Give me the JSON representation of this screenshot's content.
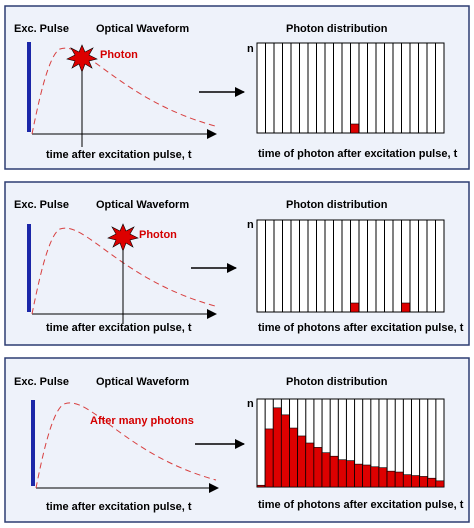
{
  "colors": {
    "panel_bg": "#eef2fa",
    "panel_border": "#2d3d72",
    "pulse": "#1b27a8",
    "waveform": "#d84040",
    "photon": "#dd0000",
    "bin_fill": "#dd0000"
  },
  "icons": {
    "photon_marker": "red-star-burst-icon",
    "arrow": "right-arrow-icon"
  },
  "panels": [
    {
      "exc_pulse": "Exc. Pulse",
      "optical_waveform": "Optical Waveform",
      "photon_label": "Photon",
      "waveform_xlabel": "time after excitation pulse, t",
      "photon_distribution": "Photon distribution",
      "y_axis_label": "n",
      "histogram_xlabel": "time of photon after excitation pulse, t",
      "bin_counts": [
        0,
        0,
        0,
        0,
        0,
        0,
        0,
        0,
        0,
        0,
        0,
        1,
        0,
        0,
        0,
        0,
        0,
        0,
        0,
        0,
        0,
        0
      ]
    },
    {
      "exc_pulse": "Exc. Pulse",
      "optical_waveform": "Optical Waveform",
      "photon_label": "Photon",
      "waveform_xlabel": "time after excitation pulse, t",
      "photon_distribution": "Photon distribution",
      "y_axis_label": "n",
      "histogram_xlabel": "time of photons after excitation pulse, t",
      "bin_counts": [
        0,
        0,
        0,
        0,
        0,
        0,
        0,
        0,
        0,
        0,
        0,
        1,
        0,
        0,
        0,
        0,
        0,
        1,
        0,
        0,
        0,
        0
      ]
    },
    {
      "exc_pulse": "Exc. Pulse",
      "optical_waveform": "Optical Waveform",
      "photon_label": "After many photons",
      "waveform_xlabel": "time after excitation pulse, t",
      "photon_distribution": "Photon distribution",
      "y_axis_label": "n",
      "histogram_xlabel": "time of photons after excitation pulse, t",
      "bin_counts": [
        0.02,
        0.66,
        0.9,
        0.82,
        0.67,
        0.58,
        0.5,
        0.45,
        0.39,
        0.35,
        0.31,
        0.3,
        0.26,
        0.25,
        0.23,
        0.22,
        0.18,
        0.17,
        0.14,
        0.13,
        0.12,
        0.1,
        0.07
      ]
    }
  ]
}
